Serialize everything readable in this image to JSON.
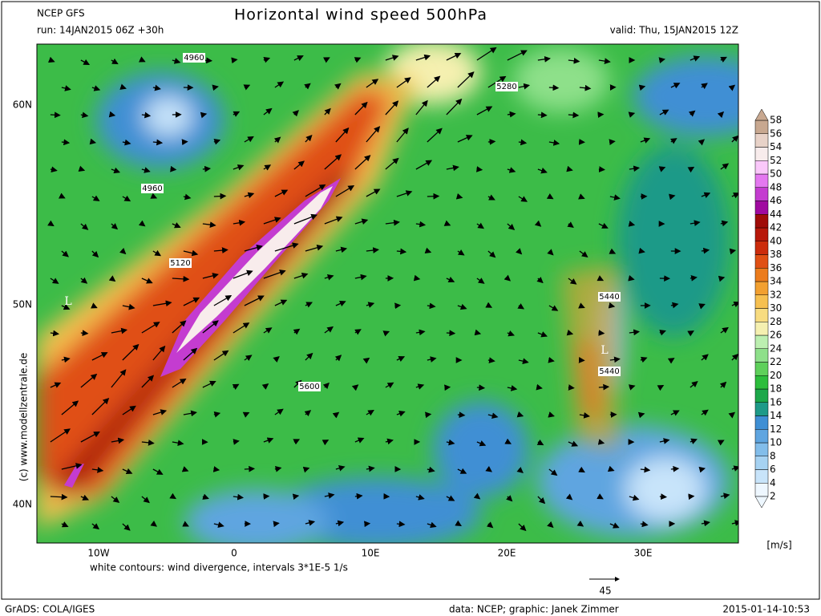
{
  "header": {
    "model": "NCEP GFS",
    "title": "Horizontal wind speed 500hPa",
    "run": "run: 14JAN2015 06Z +30h",
    "valid": "valid: Thu, 15JAN2015 12Z"
  },
  "map": {
    "lat_labels": [
      "60N",
      "50N",
      "40N"
    ],
    "lon_labels": [
      "10W",
      "0",
      "10E",
      "20E",
      "30E"
    ],
    "contour_labels": [
      "4960",
      "5280",
      "4960",
      "5120",
      "5440",
      "5440",
      "5600"
    ],
    "lows": [
      "L",
      "L"
    ],
    "note": "white contours: wind divergence, intervals 3*1E-5 1/s",
    "copyright": "(c) www.modellzentrale.de",
    "reference_vector": "45"
  },
  "colorbar": {
    "unit": "[m/s]",
    "labels": [
      2,
      4,
      6,
      8,
      10,
      12,
      14,
      16,
      18,
      20,
      22,
      24,
      26,
      28,
      30,
      32,
      34,
      36,
      38,
      40,
      42,
      44,
      46,
      48,
      50,
      52,
      54,
      56,
      58
    ],
    "colors": [
      "#eef7ff",
      "#c8e4fa",
      "#a6d2f2",
      "#82bdea",
      "#5fa5e0",
      "#3f8fd4",
      "#1e9a88",
      "#1ca84a",
      "#2cbe3c",
      "#5ed05a",
      "#8ee08a",
      "#bcefb0",
      "#f5f0b0",
      "#f8dc80",
      "#f6c050",
      "#f2a030",
      "#ec7c1c",
      "#e05014",
      "#cc2c0c",
      "#b8180a",
      "#a00c08",
      "#a00aa0",
      "#c43cd0",
      "#e478f0",
      "#fac8fa",
      "#f8ecec",
      "#e8d2c8",
      "#c8a890"
    ]
  },
  "footer": {
    "software": "GrADS: COLA/IGES",
    "credits": "data: NCEP; graphic: Janek Zimmer",
    "timestamp": "2015-01-14-10:53"
  }
}
